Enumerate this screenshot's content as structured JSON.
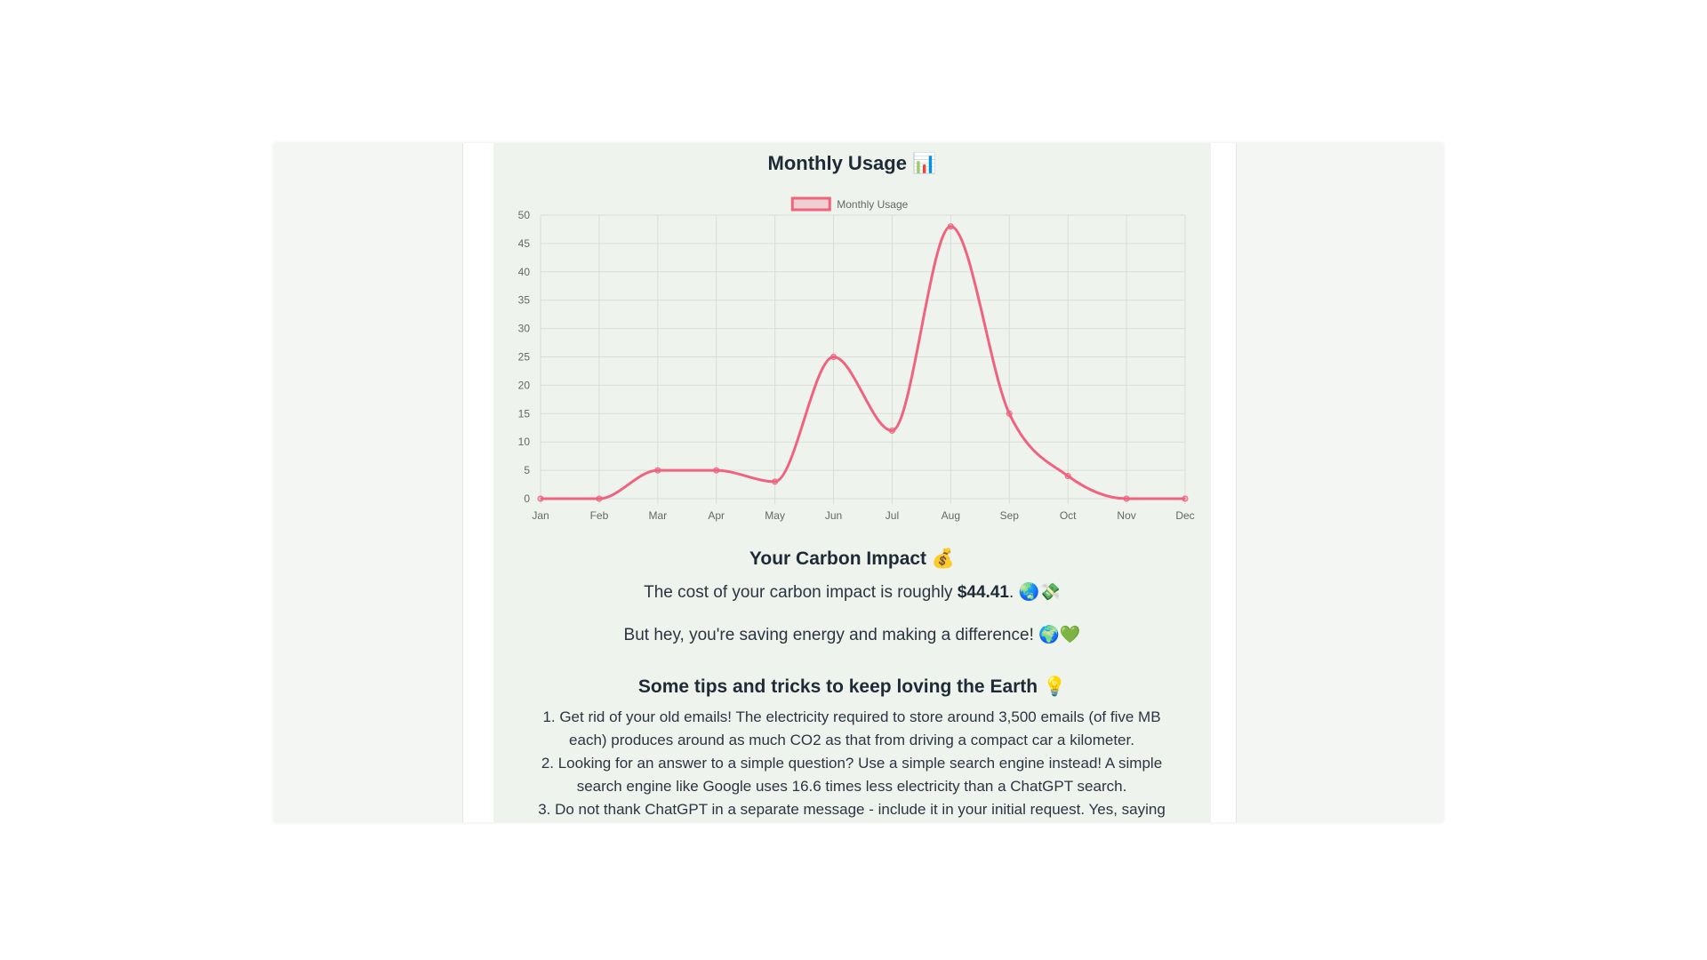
{
  "chart_section": {
    "title": "Monthly Usage",
    "title_emoji": "📊"
  },
  "chart_data": {
    "type": "line",
    "title": "Monthly Usage",
    "categories": [
      "Jan",
      "Feb",
      "Mar",
      "Apr",
      "May",
      "Jun",
      "Jul",
      "Aug",
      "Sep",
      "Oct",
      "Nov",
      "Dec"
    ],
    "series": [
      {
        "name": "Monthly Usage",
        "values": [
          0,
          0,
          5,
          5,
          3,
          25,
          12,
          48,
          15,
          4,
          0,
          0
        ],
        "color": "#f0627e"
      }
    ],
    "yticks": [
      0,
      5,
      10,
      15,
      20,
      25,
      30,
      35,
      40,
      45,
      50
    ],
    "ylim": [
      0,
      50
    ],
    "grid": true,
    "legend_position": "top-center",
    "curve": "smooth"
  },
  "impact": {
    "title": "Your Carbon Impact",
    "title_emoji": "💰",
    "cost_prefix": "The cost of your carbon impact is roughly ",
    "cost_value": "$44.41",
    "cost_suffix": ".",
    "cost_emoji": "🌏💸",
    "saving_text": "But hey, you're saving energy and making a difference!",
    "saving_emoji": "🌍💚"
  },
  "tips": {
    "title": "Some tips and tricks to keep loving the Earth",
    "title_emoji": "💡",
    "items": [
      "1. Get rid of your old emails! The electricity required to store around 3,500 emails (of five MB each) produces around as much CO2 as that from driving a compact car a kilometer.",
      "2. Looking for an answer to a simple question? Use a simple search engine instead! A simple search engine like Google uses 16.6 times less electricity than a ChatGPT search.",
      "3. Do not thank ChatGPT in a separate message - include it in your initial request. Yes, saying"
    ]
  },
  "colors": {
    "panel_bg": "#eef4ed",
    "sidebar_bg": "#f3f6f2",
    "line": "#f0627e",
    "text": "#1f2a37"
  }
}
